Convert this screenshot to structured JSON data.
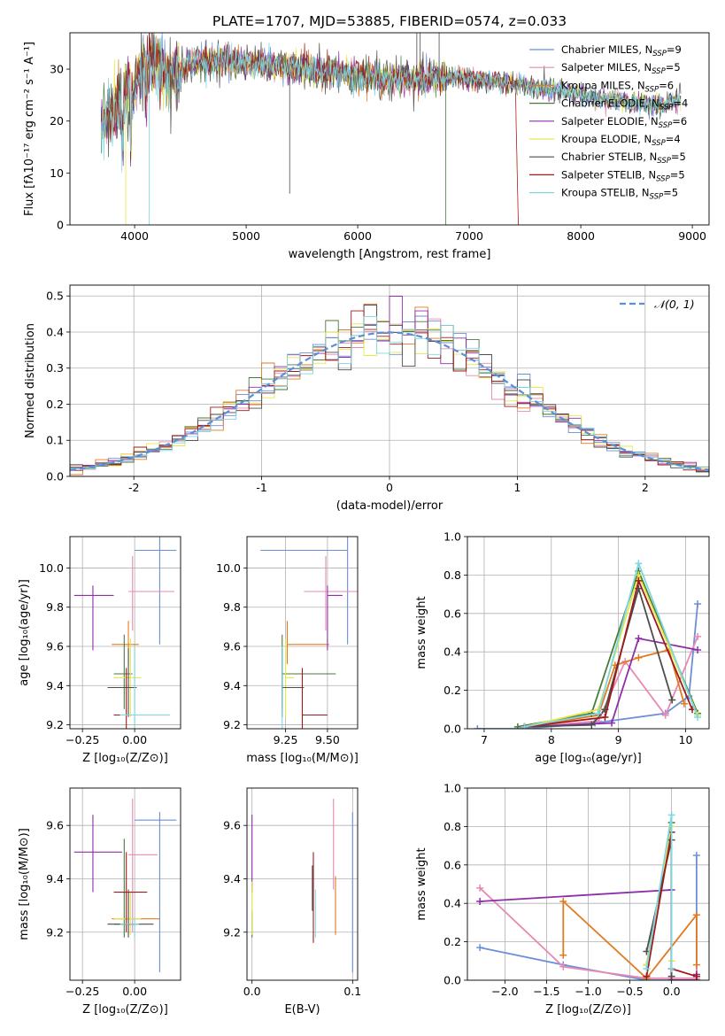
{
  "figure_title": "PLATE=1707, MJD=53885, FIBERID=0574, z=0.033",
  "series_styles": [
    {
      "name": "Chabrier MILES",
      "nssp": "9",
      "color": "#6b8fd8"
    },
    {
      "name": "Salpeter MILES",
      "nssp": "5",
      "color": "#e889b4"
    },
    {
      "name": "Kroupa MILES",
      "nssp": "6",
      "color": "#e07b22"
    },
    {
      "name": "Chabrier ELODIE",
      "nssp": "4",
      "color": "#4a7a3a"
    },
    {
      "name": "Salpeter ELODIE",
      "nssp": "6",
      "color": "#8e2fa8"
    },
    {
      "name": "Kroupa ELODIE",
      "nssp": "4",
      "color": "#e6e84a"
    },
    {
      "name": "Chabrier STELIB",
      "nssp": "5",
      "color": "#4d4d4d"
    },
    {
      "name": "Salpeter STELIB",
      "nssp": "5",
      "color": "#a01a1a"
    },
    {
      "name": "Kroupa STELIB",
      "nssp": "5",
      "color": "#7fd6e0"
    }
  ],
  "chart_data": [
    {
      "id": "spectrum",
      "type": "line",
      "xlabel": "wavelength [Angstrom, rest frame]",
      "ylabel": "Flux [fλ10⁻¹⁷ erg cm⁻² s⁻¹ A⁻¹]",
      "xlim": [
        3420,
        9150
      ],
      "ylim": [
        0,
        37
      ],
      "xticks": [
        4000,
        5000,
        6000,
        7000,
        8000,
        9000
      ],
      "yticks": [
        0,
        10,
        20,
        30
      ],
      "legend_position": "top-right",
      "spectrum_profile": {
        "wavelength": [
          3700,
          3800,
          3900,
          4000,
          4100,
          4200,
          4300,
          4500,
          4700,
          4900,
          5100,
          5300,
          5500,
          5700,
          5900,
          6100,
          6300,
          6500,
          6700,
          6900,
          7100,
          7300,
          7500,
          7700,
          7900,
          8100,
          8300,
          8500,
          8700,
          8900
        ],
        "flux": [
          20,
          22,
          24,
          27,
          32,
          31,
          28,
          31,
          31.5,
          31.5,
          31,
          30.5,
          30,
          29.5,
          29,
          28.5,
          28,
          28,
          28.5,
          28.5,
          28,
          27.5,
          27,
          26,
          25.5,
          24.5,
          24,
          23.5,
          23,
          24
        ]
      }
    },
    {
      "id": "residuals",
      "type": "line",
      "xlabel": "(data-model)/error",
      "ylabel": "Normed distribution",
      "xlim": [
        -2.5,
        2.5
      ],
      "ylim": [
        0,
        0.53
      ],
      "xticks": [
        -2,
        -1,
        0,
        1,
        2
      ],
      "yticks": [
        0.0,
        0.1,
        0.2,
        0.3,
        0.4,
        0.5
      ],
      "grid": true,
      "legend_position": "top-right",
      "legend_label": "𝒩(0, 1)",
      "gaussian": {
        "mean": 0,
        "sigma": 1,
        "color": "#5b8fd8"
      },
      "hist_bin_width": 0.1
    },
    {
      "id": "age_vs_Z",
      "type": "scatter",
      "xlabel": "Z [log₁₀(Z/Z⊙)]",
      "ylabel": "age  [log₁₀(age/yr)]",
      "xlim": [
        -0.31,
        0.22
      ],
      "ylim": [
        9.18,
        10.16
      ],
      "xticks": [
        -0.25,
        0.0
      ],
      "xticklabels": [
        "−0.25",
        "0.00"
      ],
      "yticks": [
        9.2,
        9.4,
        9.6,
        9.8,
        10.0
      ],
      "grid": true,
      "points": [
        {
          "x": 0.12,
          "y": 10.09,
          "xerr": [
            0.12,
            0.08
          ],
          "yerr": [
            0.48,
            0.1
          ],
          "c": 0
        },
        {
          "x": -0.01,
          "y": 9.88,
          "xerr": [
            0.02,
            0.2
          ],
          "yerr": [
            0.2,
            0.18
          ],
          "c": 1
        },
        {
          "x": -0.03,
          "y": 9.61,
          "xerr": [
            0.08,
            0.05
          ],
          "yerr": [
            0.1,
            0.12
          ],
          "c": 2
        },
        {
          "x": -0.05,
          "y": 9.46,
          "xerr": [
            0.05,
            0.04
          ],
          "yerr": [
            0.18,
            0.2
          ],
          "c": 3
        },
        {
          "x": -0.2,
          "y": 9.86,
          "xerr": [
            0.09,
            0.1
          ],
          "yerr": [
            0.28,
            0.05
          ],
          "c": 4
        },
        {
          "x": -0.02,
          "y": 9.44,
          "xerr": [
            0.08,
            0.05
          ],
          "yerr": [
            0.2,
            0.2
          ],
          "c": 5
        },
        {
          "x": -0.03,
          "y": 9.39,
          "xerr": [
            0.1,
            0.04
          ],
          "yerr": [
            0.15,
            0.2
          ],
          "c": 6
        },
        {
          "x": -0.04,
          "y": 9.25,
          "xerr": [
            0.06,
            0.06
          ],
          "yerr": [
            0.15,
            0.24
          ],
          "c": 7
        },
        {
          "x": -0.0,
          "y": 9.25,
          "xerr": [
            0.07,
            0.17
          ],
          "yerr": [
            0.1,
            0.35
          ],
          "c": 8
        }
      ]
    },
    {
      "id": "age_vs_mass",
      "type": "scatter",
      "xlabel": "mass [log₁₀(M/M⊙)]",
      "xlim": [
        9.02,
        9.68
      ],
      "ylim": [
        9.18,
        10.16
      ],
      "xticks": [
        9.25,
        9.5
      ],
      "xticklabels": [
        "9.25",
        "9.50"
      ],
      "yticks": [
        9.2,
        9.4,
        9.6,
        9.8,
        10.0
      ],
      "grid": true,
      "points": [
        {
          "x": 9.62,
          "y": 10.09,
          "xerr": [
            0.52,
            0.0
          ],
          "yerr": [
            0.48,
            0.1
          ],
          "c": 0
        },
        {
          "x": 9.49,
          "y": 9.88,
          "xerr": [
            0.13,
            0.21
          ],
          "yerr": [
            0.2,
            0.18
          ],
          "c": 1
        },
        {
          "x": 9.26,
          "y": 9.61,
          "xerr": [
            0.0,
            0.25
          ],
          "yerr": [
            0.1,
            0.12
          ],
          "c": 2
        },
        {
          "x": 9.23,
          "y": 9.46,
          "xerr": [
            0.0,
            0.32
          ],
          "yerr": [
            0.18,
            0.2
          ],
          "c": 3
        },
        {
          "x": 9.5,
          "y": 9.86,
          "xerr": [
            0.0,
            0.09
          ],
          "yerr": [
            0.28,
            0.05
          ],
          "c": 4
        },
        {
          "x": 9.25,
          "y": 9.44,
          "xerr": [
            0.0,
            0.05
          ],
          "yerr": [
            0.2,
            0.2
          ],
          "c": 5
        },
        {
          "x": 9.23,
          "y": 9.39,
          "xerr": [
            0.0,
            0.13
          ],
          "yerr": [
            0.15,
            0.2
          ],
          "c": 6
        },
        {
          "x": 9.35,
          "y": 9.25,
          "xerr": [
            0.0,
            0.15
          ],
          "yerr": [
            0.15,
            0.24
          ],
          "c": 7
        },
        {
          "x": 9.23,
          "y": 9.25,
          "xerr": [
            0.0,
            0.0
          ],
          "yerr": [
            0.1,
            0.35
          ],
          "c": 8
        }
      ]
    },
    {
      "id": "weight_vs_age",
      "type": "line",
      "xlabel": "age  [log₁₀(age/yr)]",
      "ylabel": "mass weight",
      "xlim": [
        6.75,
        10.35
      ],
      "ylim": [
        0,
        1
      ],
      "xticks": [
        7,
        8,
        9,
        10
      ],
      "yticks": [
        0.0,
        0.2,
        0.4,
        0.6,
        0.8,
        1.0
      ],
      "grid": true,
      "series": [
        {
          "c": 0,
          "x": [
            6.9,
            7.6,
            8.65,
            9.7,
            10.05,
            10.18
          ],
          "y": [
            0.0,
            0.0,
            0.03,
            0.08,
            0.17,
            0.65
          ]
        },
        {
          "c": 1,
          "x": [
            7.7,
            8.7,
            9.1,
            9.7,
            10.18
          ],
          "y": [
            0.01,
            0.04,
            0.35,
            0.07,
            0.48
          ]
        },
        {
          "c": 2,
          "x": [
            7.6,
            8.7,
            8.95,
            9.3,
            9.75,
            9.98
          ],
          "y": [
            0.01,
            0.07,
            0.33,
            0.37,
            0.41,
            0.13
          ]
        },
        {
          "c": 3,
          "x": [
            7.5,
            8.6,
            9.3,
            10.18
          ],
          "y": [
            0.01,
            0.08,
            0.82,
            0.08
          ]
        },
        {
          "c": 4,
          "x": [
            7.6,
            8.9,
            9.3,
            10.18
          ],
          "y": [
            0.01,
            0.03,
            0.47,
            0.41
          ]
        },
        {
          "c": 5,
          "x": [
            7.6,
            8.7,
            9.3,
            10.18
          ],
          "y": [
            0.01,
            0.1,
            0.8,
            0.07
          ]
        },
        {
          "c": 6,
          "x": [
            7.6,
            8.6,
            8.8,
            9.3,
            9.8
          ],
          "y": [
            0.01,
            0.02,
            0.1,
            0.73,
            0.15
          ]
        },
        {
          "c": 7,
          "x": [
            7.6,
            8.8,
            9.3,
            10.1
          ],
          "y": [
            0.01,
            0.06,
            0.77,
            0.1
          ]
        },
        {
          "c": 8,
          "x": [
            7.6,
            8.7,
            9.3,
            10.18
          ],
          "y": [
            0.01,
            0.08,
            0.86,
            0.06
          ]
        }
      ]
    },
    {
      "id": "mass_vs_Z",
      "type": "scatter",
      "xlabel": "Z [log₁₀(Z/Z⊙)]",
      "ylabel": "mass [log₁₀(M/M⊙)]",
      "xlim": [
        -0.31,
        0.22
      ],
      "ylim": [
        9.02,
        9.74
      ],
      "xticks": [
        -0.25,
        0.0
      ],
      "xticklabels": [
        "−0.25",
        "0.00"
      ],
      "yticks": [
        9.2,
        9.4,
        9.6
      ],
      "grid": true,
      "points": [
        {
          "x": 0.12,
          "y": 9.62,
          "xerr": [
            0.12,
            0.08
          ],
          "yerr": [
            0.57,
            0.03
          ],
          "c": 0
        },
        {
          "x": -0.01,
          "y": 9.49,
          "xerr": [
            0.02,
            0.12
          ],
          "yerr": [
            0.29,
            0.21
          ],
          "c": 1
        },
        {
          "x": -0.03,
          "y": 9.25,
          "xerr": [
            0.08,
            0.15
          ],
          "yerr": [
            0.05,
            0.1
          ],
          "c": 2
        },
        {
          "x": -0.05,
          "y": 9.23,
          "xerr": [
            0.05,
            0.05
          ],
          "yerr": [
            0.05,
            0.32
          ],
          "c": 3
        },
        {
          "x": -0.2,
          "y": 9.5,
          "xerr": [
            0.09,
            0.14
          ],
          "yerr": [
            0.15,
            0.14
          ],
          "c": 4
        },
        {
          "x": -0.02,
          "y": 9.25,
          "xerr": [
            0.08,
            0.05
          ],
          "yerr": [
            0.06,
            0.1
          ],
          "c": 5
        },
        {
          "x": -0.03,
          "y": 9.23,
          "xerr": [
            0.1,
            0.12
          ],
          "yerr": [
            0.05,
            0.13
          ],
          "c": 6
        },
        {
          "x": -0.04,
          "y": 9.35,
          "xerr": [
            0.06,
            0.1
          ],
          "yerr": [
            0.15,
            0.15
          ],
          "c": 7
        },
        {
          "x": -0.0,
          "y": 9.23,
          "xerr": [
            0.07,
            0.02
          ],
          "yerr": [
            0.05,
            0.03
          ],
          "c": 8
        }
      ]
    },
    {
      "id": "mass_vs_ebv",
      "type": "scatter",
      "xlabel": "E(B-V)",
      "xlim": [
        -0.005,
        0.105
      ],
      "ylim": [
        9.02,
        9.74
      ],
      "xticks": [
        0.0,
        0.1
      ],
      "xticklabels": [
        "0.0",
        "0.1"
      ],
      "yticks": [
        9.2,
        9.4,
        9.6
      ],
      "grid": true,
      "points": [
        {
          "x": 0.1,
          "y": 9.62,
          "yerr": [
            0.57,
            0.03
          ],
          "c": 0
        },
        {
          "x": 0.081,
          "y": 9.49,
          "yerr": [
            0.13,
            0.21
          ],
          "c": 1
        },
        {
          "x": 0.083,
          "y": 9.25,
          "yerr": [
            0.06,
            0.16
          ],
          "c": 2
        },
        {
          "x": 0.0,
          "y": 9.23,
          "yerr": [
            0.05,
            0.05
          ],
          "c": 3
        },
        {
          "x": 0.0,
          "y": 9.5,
          "yerr": [
            0.15,
            0.14
          ],
          "c": 4
        },
        {
          "x": 0.0,
          "y": 9.25,
          "yerr": [
            0.06,
            0.14
          ],
          "c": 5
        },
        {
          "x": 0.06,
          "y": 9.35,
          "yerr": [
            0.07,
            0.1
          ],
          "c": 6
        },
        {
          "x": 0.061,
          "y": 9.35,
          "yerr": [
            0.19,
            0.15
          ],
          "c": 7
        },
        {
          "x": 0.063,
          "y": 9.3,
          "yerr": [
            0.12,
            0.06
          ],
          "c": 8
        }
      ]
    },
    {
      "id": "weight_vs_Z",
      "type": "line",
      "xlabel": "Z [log₁₀(Z/Z⊙)]",
      "ylabel": "mass weight",
      "xlim": [
        -2.45,
        0.45
      ],
      "ylim": [
        0,
        1
      ],
      "xticks": [
        -2.0,
        -1.5,
        -1.0,
        -0.5,
        0.0
      ],
      "xticklabels": [
        "−2.0",
        "−1.5",
        "−1.0",
        "−0.5",
        "0.0"
      ],
      "yticks": [
        0.0,
        0.2,
        0.4,
        0.6,
        0.8,
        1.0
      ],
      "grid": true,
      "series": [
        {
          "c": 0,
          "x": [
            -2.3,
            -1.3,
            -0.3,
            0.0,
            0.3,
            0.3
          ],
          "y": [
            0.17,
            0.08,
            0.0,
            0.0,
            0.0,
            0.65
          ]
        },
        {
          "c": 1,
          "x": [
            -2.3,
            -1.3,
            -0.3,
            0.0,
            0.3,
            0.3
          ],
          "y": [
            0.48,
            0.07,
            0.01,
            0.01,
            0.01,
            0.34
          ]
        },
        {
          "c": 2,
          "x": [
            -1.3,
            -1.3,
            -0.3,
            0.3,
            0.3
          ],
          "y": [
            0.13,
            0.41,
            0.01,
            0.34,
            0.08
          ]
        },
        {
          "c": 3,
          "x": [
            -0.3,
            0.0,
            0.0,
            0.3
          ],
          "y": [
            0.08,
            0.82,
            0.0,
            0.0
          ]
        },
        {
          "c": 4,
          "x": [
            -2.3,
            0.0,
            0.0,
            0.3,
            0.3
          ],
          "y": [
            0.41,
            0.47,
            0.0,
            0.0,
            0.03
          ]
        },
        {
          "c": 5,
          "x": [
            -0.3,
            0.0,
            0.0
          ],
          "y": [
            0.08,
            0.8,
            0.1
          ]
        },
        {
          "c": 6,
          "x": [
            -0.3,
            0.0,
            0.0
          ],
          "y": [
            0.15,
            0.73,
            0.02
          ]
        },
        {
          "c": 7,
          "x": [
            -0.3,
            0.0,
            0.0,
            0.3
          ],
          "y": [
            0.02,
            0.77,
            0.06,
            0.02
          ]
        },
        {
          "c": 8,
          "x": [
            -0.3,
            0.0,
            0.0
          ],
          "y": [
            0.06,
            0.86,
            0.06
          ]
        }
      ]
    }
  ]
}
